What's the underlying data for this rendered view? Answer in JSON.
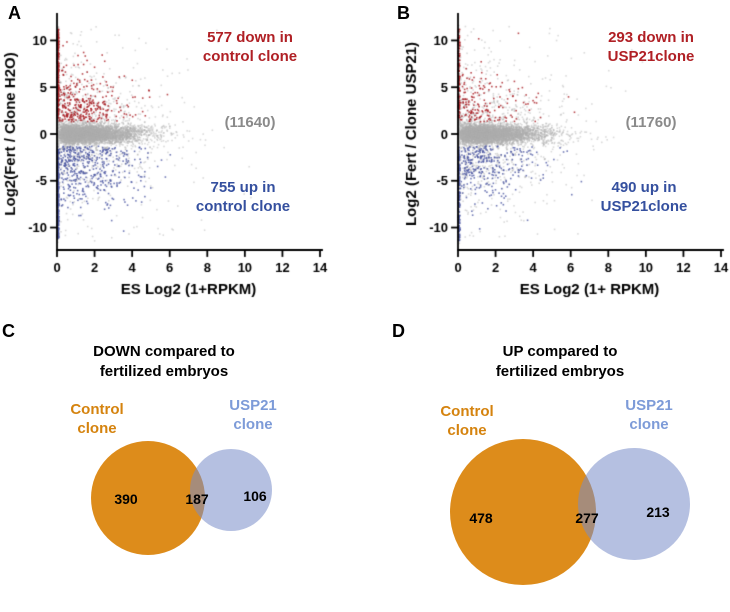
{
  "colors": {
    "red_text": "#b02025",
    "blue_text": "#35509f",
    "gray_text": "#8a8a8a",
    "orange": "#dd8c1b",
    "orange_text": "#d5830e",
    "venn_blue_fill": "rgba(120,140,200,0.55)",
    "venn_blue_text": "#7d9bd8",
    "point_gray": "rgba(172,172,172,0.45)",
    "point_red": "rgba(168,28,34,0.8)",
    "point_blue": "rgba(76,88,162,0.8)"
  },
  "panels": {
    "a": {
      "letter": "A",
      "down_annotation": "577 down in\ncontrol clone",
      "count_annotation": "(11640)",
      "up_annotation": "755 up in\ncontrol clone"
    },
    "b": {
      "letter": "B",
      "down_annotation": "293 down in\nUSP21clone",
      "count_annotation": "(11760)",
      "up_annotation": "490 up in\nUSP21clone"
    },
    "c": {
      "letter": "C",
      "title": "DOWN compared to\nfertilized embryos",
      "left_label": "Control\nclone",
      "right_label": "USP21\nclone",
      "left_count": "390",
      "mid_count": "187",
      "right_count": "106"
    },
    "d": {
      "letter": "D",
      "title": "UP compared to\nfertilized embryos",
      "left_label": "Control\nclone",
      "right_label": "USP21\nclone",
      "left_count": "478",
      "mid_count": "277",
      "right_count": "213"
    }
  },
  "chart_data": [
    {
      "type": "scatter",
      "panel": "A",
      "xlabel": "ES Log2 (1+RPKM)",
      "ylabel": "Log2(Fert / Clone H2O)",
      "xlim": [
        0,
        14
      ],
      "ylim": [
        -12.4,
        12.4
      ],
      "xticks": [
        0,
        2,
        4,
        6,
        8,
        10,
        12,
        14
      ],
      "yticks": [
        -10,
        -5,
        0,
        5,
        10
      ],
      "series": [
        {
          "name": "unchanged genes",
          "count": 11640,
          "color_key": "point_gray"
        },
        {
          "name": "down in control clone",
          "count": 577,
          "color_key": "point_red"
        },
        {
          "name": "up in control clone",
          "count": 755,
          "color_key": "point_blue"
        }
      ],
      "annotations": [
        "577 down in control clone",
        "(11640)",
        "755 up in control clone"
      ],
      "seed": 11
    },
    {
      "type": "scatter",
      "panel": "B",
      "xlabel": "ES Log2 (1+ RPKM)",
      "ylabel": "Log2 (Fert / Clone USP21)",
      "xlim": [
        0,
        14
      ],
      "ylim": [
        -12.4,
        12.4
      ],
      "xticks": [
        0,
        2,
        4,
        6,
        8,
        10,
        12,
        14
      ],
      "yticks": [
        -10,
        -5,
        0,
        5,
        10
      ],
      "series": [
        {
          "name": "unchanged genes",
          "count": 11760,
          "color_key": "point_gray"
        },
        {
          "name": "down in USP21 clone",
          "count": 293,
          "color_key": "point_red"
        },
        {
          "name": "up in USP21 clone",
          "count": 490,
          "color_key": "point_blue"
        }
      ],
      "annotations": [
        "293 down in USP21clone",
        "(11760)",
        "490 up in USP21clone"
      ],
      "seed": 22
    },
    {
      "type": "venn",
      "panel": "C",
      "title": "DOWN compared to fertilized embryos",
      "sets": [
        {
          "label": "Control clone",
          "only": 390
        },
        {
          "label": "USP21 clone",
          "only": 106
        }
      ],
      "intersection": 187
    },
    {
      "type": "venn",
      "panel": "D",
      "title": "UP compared to fertilized embryos",
      "sets": [
        {
          "label": "Control clone",
          "only": 478
        },
        {
          "label": "USP21 clone",
          "only": 213
        }
      ],
      "intersection": 277
    }
  ]
}
